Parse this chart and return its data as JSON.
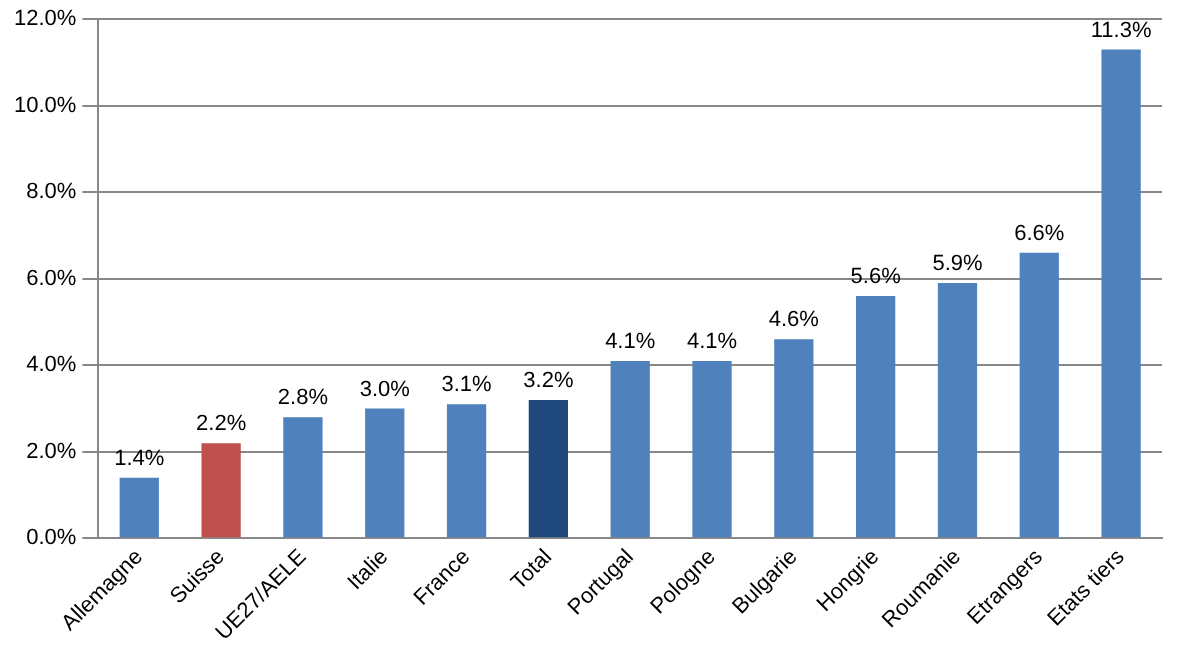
{
  "chart_data": {
    "type": "bar",
    "categories": [
      "Allemagne",
      "Suisse",
      "UE27/AELE",
      "Italie",
      "France",
      "Total",
      "Portugal",
      "Pologne",
      "Bulgarie",
      "Hongrie",
      "Roumanie",
      "Etrangers",
      "Etats tiers"
    ],
    "values": [
      1.4,
      2.2,
      2.8,
      3.0,
      3.1,
      3.2,
      4.1,
      4.1,
      4.6,
      5.6,
      5.9,
      6.6,
      11.3
    ],
    "colors": [
      "#4f81bd",
      "#c0504d",
      "#4f81bd",
      "#4f81bd",
      "#4f81bd",
      "#1f497d",
      "#4f81bd",
      "#4f81bd",
      "#4f81bd",
      "#4f81bd",
      "#4f81bd",
      "#4f81bd",
      "#4f81bd"
    ],
    "value_labels": [
      "1.4%",
      "2.2%",
      "2.8%",
      "3.0%",
      "3.1%",
      "3.2%",
      "4.1%",
      "4.1%",
      "4.6%",
      "5.6%",
      "5.9%",
      "6.6%",
      "11.3%"
    ],
    "ylim": [
      0,
      12
    ],
    "yticks": [
      {
        "value": 0,
        "label": "0.0%"
      },
      {
        "value": 2,
        "label": "2.0%"
      },
      {
        "value": 4,
        "label": "4.0%"
      },
      {
        "value": 6,
        "label": "6.0%"
      },
      {
        "value": 8,
        "label": "8.0%"
      },
      {
        "value": 10,
        "label": "10.0%"
      },
      {
        "value": 12,
        "label": "12.0%"
      }
    ],
    "grid": "y",
    "legend": false
  }
}
